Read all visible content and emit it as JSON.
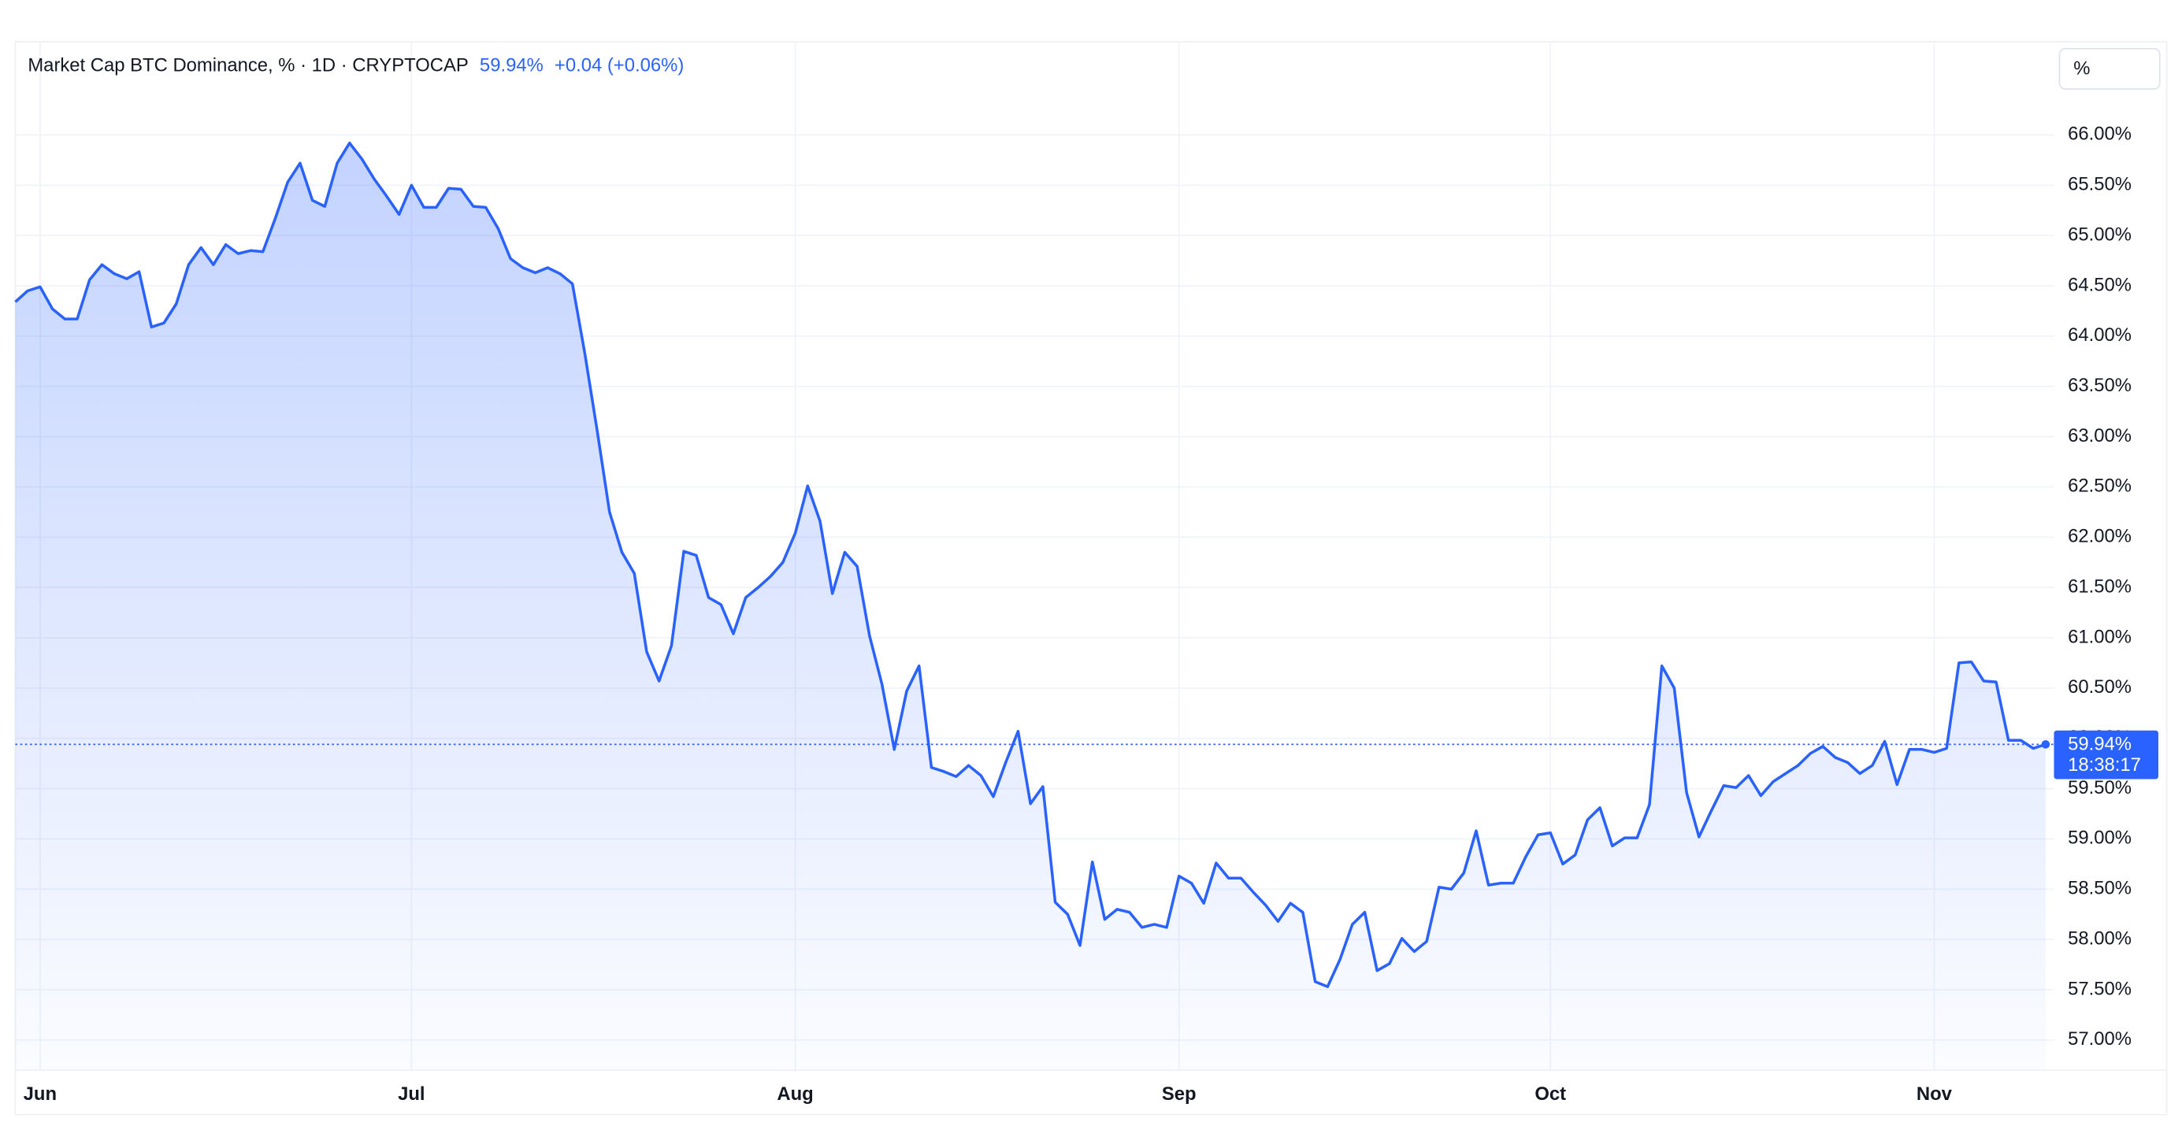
{
  "chart_data": {
    "type": "line",
    "title": "Market Cap BTC Dominance, % · 1D · CRYPTOCAP",
    "last_label": "59.94%",
    "change": "+0.04 (+0.06%)",
    "countdown": "18:38:17",
    "scale_button": "%",
    "color": "#2962ff",
    "grid": true,
    "xlim": [
      0,
      164
    ],
    "xticks": [
      {
        "value": 2,
        "label": "Jun"
      },
      {
        "value": 32,
        "label": "Jul"
      },
      {
        "value": 63,
        "label": "Aug"
      },
      {
        "value": 94,
        "label": "Sep"
      },
      {
        "value": 124,
        "label": "Oct"
      },
      {
        "value": 155,
        "label": "Nov"
      }
    ],
    "ylim": [
      56.7,
      66.9
    ],
    "yticks": [
      {
        "value": 57,
        "label": "57.00%"
      },
      {
        "value": 57.5,
        "label": "57.50%"
      },
      {
        "value": 58,
        "label": "58.00%"
      },
      {
        "value": 58.5,
        "label": "58.50%"
      },
      {
        "value": 59,
        "label": "59.00%"
      },
      {
        "value": 59.5,
        "label": "59.50%"
      },
      {
        "value": 60,
        "label": "60.00%"
      },
      {
        "value": 60.5,
        "label": "60.50%"
      },
      {
        "value": 61,
        "label": "61.00%"
      },
      {
        "value": 61.5,
        "label": "61.50%"
      },
      {
        "value": 62,
        "label": "62.00%"
      },
      {
        "value": 62.5,
        "label": "62.50%"
      },
      {
        "value": 63,
        "label": "63.00%"
      },
      {
        "value": 63.5,
        "label": "63.50%"
      },
      {
        "value": 64,
        "label": "64.00%"
      },
      {
        "value": 64.5,
        "label": "64.50%"
      },
      {
        "value": 65,
        "label": "65.00%"
      },
      {
        "value": 65.5,
        "label": "65.50%"
      },
      {
        "value": 66,
        "label": "66.00%"
      }
    ],
    "values": [
      64.34,
      64.45,
      64.49,
      64.27,
      64.17,
      64.17,
      64.56,
      64.71,
      64.62,
      64.57,
      64.64,
      64.09,
      64.13,
      64.32,
      64.71,
      64.88,
      64.71,
      64.91,
      64.82,
      64.85,
      64.84,
      65.17,
      65.53,
      65.72,
      65.35,
      65.29,
      65.72,
      65.92,
      65.76,
      65.56,
      65.39,
      65.21,
      65.5,
      65.28,
      65.28,
      65.47,
      65.46,
      65.29,
      65.28,
      65.07,
      64.77,
      64.68,
      64.63,
      64.68,
      64.62,
      64.52,
      63.83,
      63.06,
      62.25,
      61.85,
      61.64,
      60.86,
      60.57,
      60.92,
      61.86,
      61.82,
      61.4,
      61.33,
      61.04,
      61.4,
      61.5,
      61.61,
      61.75,
      62.04,
      62.51,
      62.16,
      61.44,
      61.85,
      61.71,
      61.02,
      60.54,
      59.89,
      60.47,
      60.72,
      59.71,
      59.67,
      59.62,
      59.73,
      59.63,
      59.42,
      59.76,
      60.07,
      59.35,
      59.52,
      58.37,
      58.25,
      57.94,
      58.77,
      58.2,
      58.3,
      58.27,
      58.12,
      58.15,
      58.12,
      58.63,
      58.56,
      58.36,
      58.76,
      58.61,
      58.61,
      58.47,
      58.34,
      58.18,
      58.36,
      58.27,
      57.58,
      57.53,
      57.8,
      58.15,
      58.27,
      57.69,
      57.76,
      58.01,
      57.88,
      57.98,
      58.52,
      58.5,
      58.66,
      59.08,
      58.54,
      58.56,
      58.56,
      58.82,
      59.04,
      59.06,
      58.75,
      58.84,
      59.19,
      59.31,
      58.93,
      59.01,
      59.01,
      59.34,
      60.72,
      60.5,
      59.46,
      59.02,
      59.28,
      59.53,
      59.51,
      59.63,
      59.43,
      59.57,
      59.65,
      59.73,
      59.85,
      59.92,
      59.81,
      59.76,
      59.65,
      59.73,
      59.97,
      59.54,
      59.89,
      59.89,
      59.86,
      59.9,
      60.75,
      60.76,
      60.57,
      60.56,
      59.98,
      59.98,
      59.9,
      59.94
    ]
  }
}
